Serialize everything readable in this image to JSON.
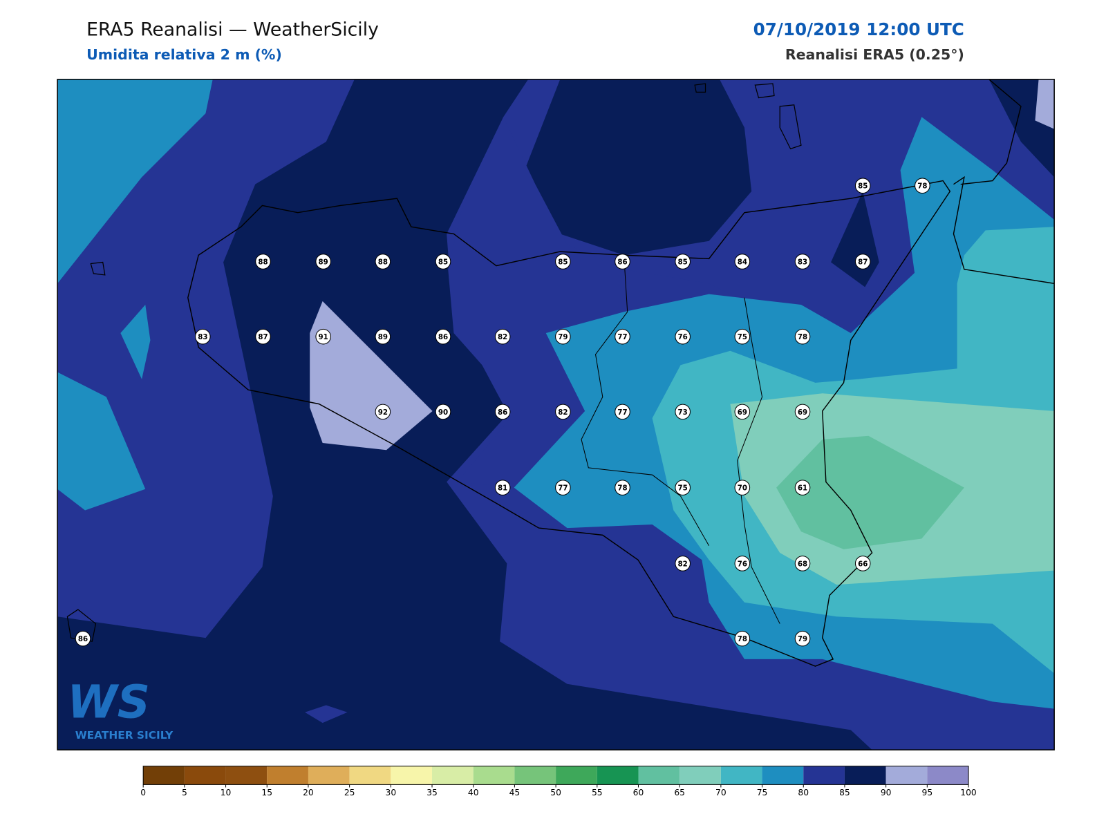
{
  "header": {
    "title": "ERA5 Reanalisi — WeatherSicily",
    "subtitle": "Umidita relativa 2 m (%)",
    "datetime": "07/10/2019 12:00 UTC",
    "source": "Reanalisi ERA5 (0.25°)"
  },
  "stations": {
    "values": [
      85,
      78,
      88,
      89,
      88,
      85,
      85,
      86,
      85,
      84,
      83,
      87,
      83,
      87,
      91,
      89,
      86,
      82,
      79,
      77,
      76,
      75,
      78,
      92,
      90,
      86,
      82,
      77,
      73,
      69,
      69,
      81,
      77,
      78,
      75,
      70,
      61,
      82,
      76,
      68,
      66,
      86,
      78,
      79
    ]
  },
  "colorbar": {
    "ticks": [
      0,
      5,
      10,
      15,
      20,
      25,
      30,
      35,
      40,
      45,
      50,
      55,
      60,
      65,
      70,
      75,
      80,
      85,
      90,
      95,
      100
    ],
    "colors": [
      "#723f07",
      "#8a4a0c",
      "#8e4f10",
      "#c07f2e",
      "#dfae5a",
      "#f0d882",
      "#f7f5aa",
      "#d8eda6",
      "#a9dc8e",
      "#76c47a",
      "#3ea85a",
      "#179453",
      "#61c0a0",
      "#80cebb",
      "#41b6c4",
      "#1e8ec0",
      "#253494",
      "#081d58",
      "#a3abda",
      "#8c89c8"
    ]
  },
  "logo": {
    "mark": "WS",
    "text": "WEATHER SICILY"
  }
}
